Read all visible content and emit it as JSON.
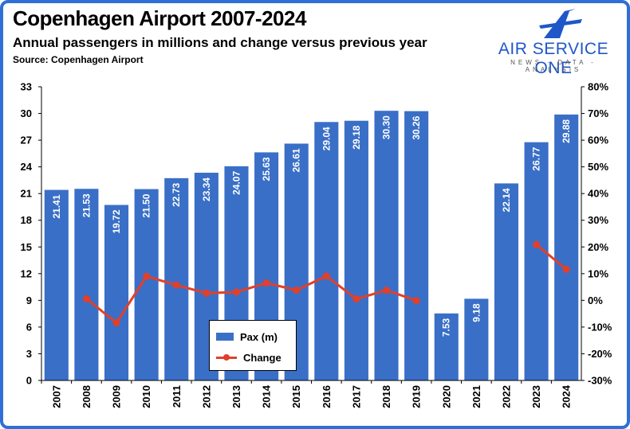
{
  "header": {
    "title": "Copenhagen Airport 2007-2024",
    "subtitle": "Annual passengers in millions and change versus previous year",
    "source": "Source: Copenhagen Airport"
  },
  "logo": {
    "name": "AIR SERVICE ONE",
    "tagline": "NEWS - DATA - ANALYSIS"
  },
  "colors": {
    "bar": "#3a6fc7",
    "line": "#e0402a",
    "frame": "#2f6fd6"
  },
  "chart_data": {
    "type": "bar",
    "title": "Copenhagen Airport 2007-2024",
    "categories": [
      "2007",
      "2008",
      "2009",
      "2010",
      "2011",
      "2012",
      "2013",
      "2014",
      "2015",
      "2016",
      "2017",
      "2018",
      "2019",
      "2020",
      "2021",
      "2022",
      "2023",
      "2024"
    ],
    "series": [
      {
        "name": "Pax (m)",
        "type": "bar",
        "axis": "left",
        "values": [
          21.41,
          21.53,
          19.72,
          21.5,
          22.73,
          23.34,
          24.07,
          25.63,
          26.61,
          29.04,
          29.18,
          30.3,
          30.26,
          7.53,
          9.18,
          22.14,
          26.77,
          29.88
        ],
        "labels": [
          "21.41",
          "21.53",
          "19.72",
          "21.50",
          "22.73",
          "23.34",
          "24.07",
          "25.63",
          "26.61",
          "29.04",
          "29.18",
          "30.30",
          "30.26",
          "7.53",
          "9.18",
          "22.14",
          "26.77",
          "29.88"
        ]
      },
      {
        "name": "Change",
        "type": "line",
        "axis": "right",
        "values": [
          null,
          0.6,
          -8.4,
          9.0,
          5.7,
          2.7,
          3.1,
          6.5,
          3.8,
          9.1,
          0.5,
          3.8,
          -0.1,
          null,
          null,
          null,
          20.9,
          11.6
        ]
      }
    ],
    "y_left": {
      "ylim": [
        0,
        33
      ],
      "ticks": [
        "0",
        "3",
        "6",
        "9",
        "12",
        "15",
        "18",
        "21",
        "24",
        "27",
        "30",
        "33"
      ]
    },
    "y_right": {
      "ylim": [
        -30,
        80
      ],
      "ticks": [
        "-30%",
        "-20%",
        "-10%",
        "0%",
        "10%",
        "20%",
        "30%",
        "40%",
        "50%",
        "60%",
        "70%",
        "80%"
      ]
    },
    "grid": false,
    "legend": [
      "Pax (m)",
      "Change"
    ],
    "legend_position": "bottom-center-left"
  }
}
